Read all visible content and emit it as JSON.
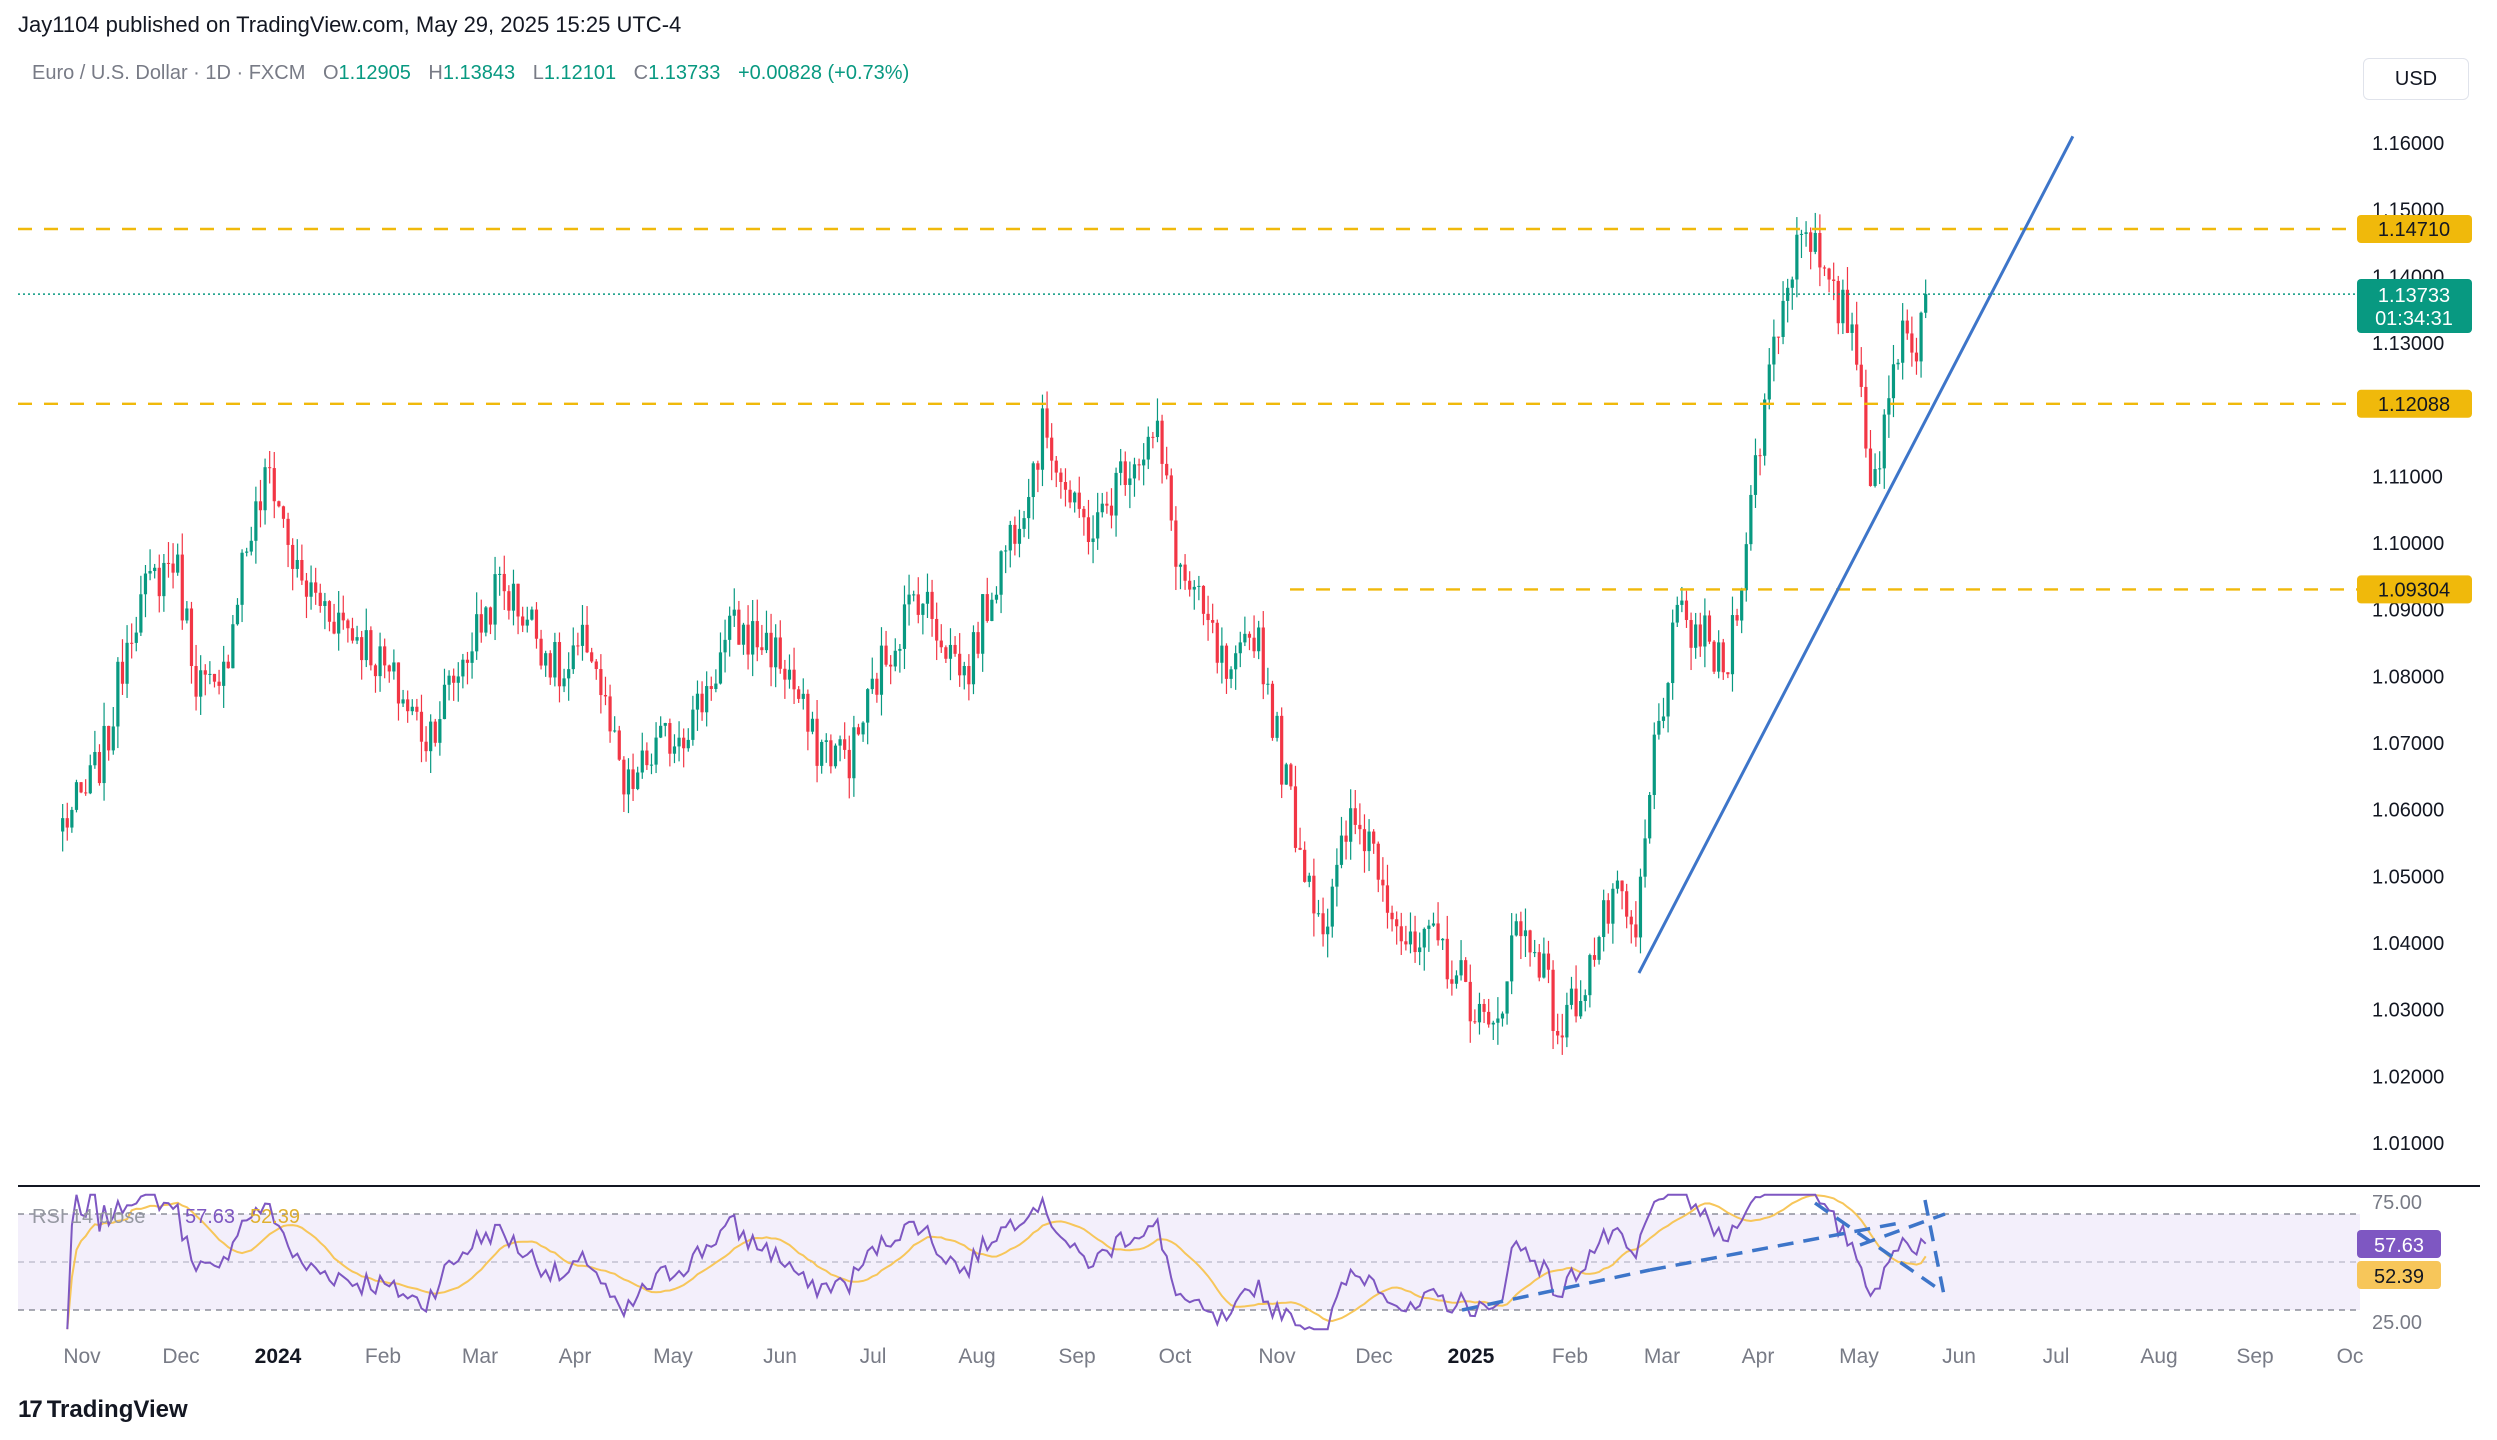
{
  "header": {
    "publisher": "Jay1104 published on TradingView.com, May 29, 2025 15:25 UTC-4"
  },
  "legend": {
    "symbol": "Euro / U.S. Dollar · 1D · FXCM",
    "o_label": "O",
    "o": "1.12905",
    "h_label": "H",
    "h": "1.13843",
    "l_label": "L",
    "l": "1.12101",
    "c_label": "C",
    "c": "1.13733",
    "change": "+0.00828 (+0.73%)"
  },
  "currency_button": "USD",
  "price_tag": {
    "price": "1.13733",
    "countdown": "01:34:31"
  },
  "levels": [
    {
      "value": 1.1471,
      "label": "1.14710"
    },
    {
      "value": 1.12088,
      "label": "1.12088"
    },
    {
      "value": 1.09304,
      "label": "1.09304"
    }
  ],
  "rsi_legend": {
    "label": "RSI 14 close",
    "rsi": "57.63",
    "ma": "52.39"
  },
  "rsi_tags": {
    "rsi": "57.63",
    "ma": "52.39"
  },
  "footer": {
    "brand": "TradingView"
  },
  "colors": {
    "up": "#089981",
    "down": "#f23645",
    "level": "#f0b90b",
    "trend": "#3d75c9",
    "rsi": "#7e57c2",
    "rsi_ma": "#f7c65a",
    "price_tag": "#089981",
    "rsi_band": "#f3effb"
  },
  "chart_data": [
    {
      "type": "candlestick",
      "title": "",
      "x_axis": {
        "tick_labels": [
          "Nov",
          "Dec",
          "2024",
          "Feb",
          "Mar",
          "Apr",
          "May",
          "Jun",
          "Jul",
          "Aug",
          "Sep",
          "Oct",
          "Nov",
          "Dec",
          "2025",
          "Feb",
          "Mar",
          "Apr",
          "May",
          "Jun",
          "Jul",
          "Aug",
          "Sep",
          "Oc"
        ]
      },
      "y_axis": {
        "range": [
          1.0,
          1.165
        ],
        "tick_values": [
          1.16,
          1.15,
          1.14,
          1.13,
          1.11,
          1.1,
          1.09,
          1.08,
          1.07,
          1.06,
          1.05,
          1.04,
          1.03,
          1.02,
          1.01
        ],
        "tick_labels": [
          "1.16000",
          "1.15000",
          "1.14000",
          "1.13000",
          "1.11000",
          "1.10000",
          "1.09000",
          "1.08000",
          "1.07000",
          "1.06000",
          "1.05000",
          "1.04000",
          "1.03000",
          "1.02000",
          "1.01000"
        ]
      },
      "closes_approx": [
        {
          "x": "2023-10-23",
          "y": 1.058
        },
        {
          "x": "2023-10-30",
          "y": 1.062
        },
        {
          "x": "2023-11-06",
          "y": 1.07
        },
        {
          "x": "2023-11-13",
          "y": 1.088
        },
        {
          "x": "2023-11-20",
          "y": 1.094
        },
        {
          "x": "2023-11-27",
          "y": 1.098
        },
        {
          "x": "2023-12-04",
          "y": 1.08
        },
        {
          "x": "2023-12-11",
          "y": 1.076
        },
        {
          "x": "2023-12-18",
          "y": 1.097
        },
        {
          "x": "2023-12-27",
          "y": 1.111
        },
        {
          "x": "2024-01-05",
          "y": 1.094
        },
        {
          "x": "2024-01-15",
          "y": 1.09
        },
        {
          "x": "2024-01-26",
          "y": 1.085
        },
        {
          "x": "2024-02-05",
          "y": 1.078
        },
        {
          "x": "2024-02-14",
          "y": 1.071
        },
        {
          "x": "2024-02-26",
          "y": 1.083
        },
        {
          "x": "2024-03-08",
          "y": 1.094
        },
        {
          "x": "2024-03-18",
          "y": 1.088
        },
        {
          "x": "2024-03-28",
          "y": 1.079
        },
        {
          "x": "2024-04-05",
          "y": 1.086
        },
        {
          "x": "2024-04-16",
          "y": 1.062
        },
        {
          "x": "2024-04-26",
          "y": 1.069
        },
        {
          "x": "2024-05-08",
          "y": 1.074
        },
        {
          "x": "2024-05-20",
          "y": 1.087
        },
        {
          "x": "2024-05-31",
          "y": 1.085
        },
        {
          "x": "2024-06-07",
          "y": 1.08
        },
        {
          "x": "2024-06-14",
          "y": 1.07
        },
        {
          "x": "2024-06-26",
          "y": 1.068
        },
        {
          "x": "2024-07-05",
          "y": 1.081
        },
        {
          "x": "2024-07-17",
          "y": 1.093
        },
        {
          "x": "2024-07-26",
          "y": 1.085
        },
        {
          "x": "2024-08-01",
          "y": 1.08
        },
        {
          "x": "2024-08-09",
          "y": 1.093
        },
        {
          "x": "2024-08-19",
          "y": 1.107
        },
        {
          "x": "2024-08-26",
          "y": 1.118
        },
        {
          "x": "2024-09-04",
          "y": 1.104
        },
        {
          "x": "2024-09-11",
          "y": 1.102
        },
        {
          "x": "2024-09-20",
          "y": 1.112
        },
        {
          "x": "2024-09-30",
          "y": 1.116
        },
        {
          "x": "2024-10-07",
          "y": 1.096
        },
        {
          "x": "2024-10-16",
          "y": 1.087
        },
        {
          "x": "2024-10-23",
          "y": 1.078
        },
        {
          "x": "2024-10-31",
          "y": 1.088
        },
        {
          "x": "2024-11-06",
          "y": 1.072
        },
        {
          "x": "2024-11-14",
          "y": 1.054
        },
        {
          "x": "2024-11-22",
          "y": 1.042
        },
        {
          "x": "2024-11-29",
          "y": 1.058
        },
        {
          "x": "2024-12-06",
          "y": 1.056
        },
        {
          "x": "2024-12-18",
          "y": 1.038
        },
        {
          "x": "2024-12-27",
          "y": 1.04
        },
        {
          "x": "2025-01-06",
          "y": 1.032
        },
        {
          "x": "2025-01-13",
          "y": 1.025
        },
        {
          "x": "2025-01-20",
          "y": 1.042
        },
        {
          "x": "2025-01-27",
          "y": 1.04
        },
        {
          "x": "2025-02-03",
          "y": 1.026
        },
        {
          "x": "2025-02-12",
          "y": 1.036
        },
        {
          "x": "2025-02-20",
          "y": 1.047
        },
        {
          "x": "2025-02-27",
          "y": 1.04
        },
        {
          "x": "2025-03-05",
          "y": 1.07
        },
        {
          "x": "2025-03-12",
          "y": 1.088
        },
        {
          "x": "2025-03-20",
          "y": 1.086
        },
        {
          "x": "2025-03-27",
          "y": 1.08
        },
        {
          "x": "2025-04-03",
          "y": 1.102
        },
        {
          "x": "2025-04-11",
          "y": 1.13
        },
        {
          "x": "2025-04-21",
          "y": 1.15
        },
        {
          "x": "2025-04-28",
          "y": 1.137
        },
        {
          "x": "2025-05-06",
          "y": 1.133
        },
        {
          "x": "2025-05-12",
          "y": 1.11
        },
        {
          "x": "2025-05-16",
          "y": 1.116
        },
        {
          "x": "2025-05-21",
          "y": 1.133
        },
        {
          "x": "2025-05-26",
          "y": 1.13
        },
        {
          "x": "2025-05-29",
          "y": 1.13733
        }
      ],
      "horizontal_levels": [
        1.1471,
        1.12088,
        1.09304
      ],
      "trendline": {
        "start": {
          "x": "2025-02-28",
          "y": 1.0355
        },
        "end": {
          "x": "2025-07-14",
          "y": 1.161
        }
      }
    },
    {
      "type": "line",
      "title": "",
      "y_axis": {
        "range": [
          20,
          80
        ],
        "tick_values": [
          75,
          25
        ],
        "tick_labels": [
          "75.00",
          "25.00"
        ],
        "bands": [
          70,
          50,
          30
        ]
      },
      "series": [
        {
          "name": "",
          "last": 57.63
        },
        {
          "name": "",
          "last": 52.39
        }
      ]
    }
  ]
}
